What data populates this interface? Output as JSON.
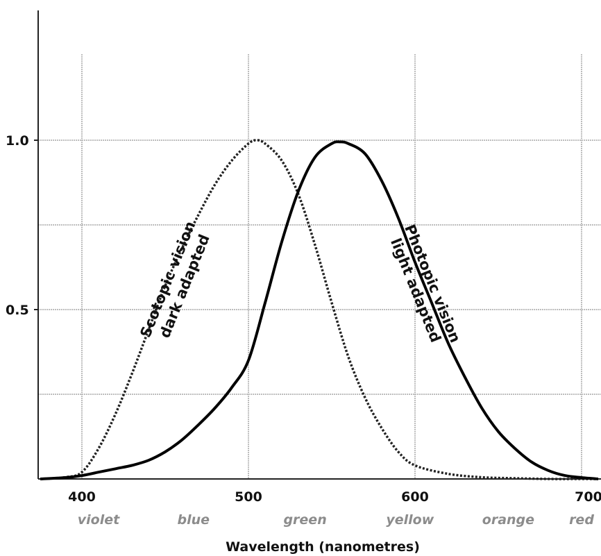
{
  "chart_data": {
    "type": "line",
    "xlabel": "Wavelength (nanometres)",
    "ylabel": "",
    "xlim": [
      375,
      710
    ],
    "ylim": [
      0,
      1.35
    ],
    "grid": true,
    "x_ticks": [
      {
        "value": 400,
        "label": "400"
      },
      {
        "value": 500,
        "label": "500"
      },
      {
        "value": 600,
        "label": "600"
      },
      {
        "value": 700,
        "label": "700"
      }
    ],
    "y_ticks": [
      {
        "value": 1.0,
        "label": "1.0"
      },
      {
        "value": 0.5,
        "label": "0.5"
      }
    ],
    "y_grid_values": [
      0.25,
      0.5,
      0.75,
      1.0
    ],
    "color_bands": [
      {
        "x": 410,
        "label": "violet"
      },
      {
        "x": 467,
        "label": "blue"
      },
      {
        "x": 534,
        "label": "green"
      },
      {
        "x": 597,
        "label": "yellow"
      },
      {
        "x": 656,
        "label": "orange"
      },
      {
        "x": 700,
        "label": "red"
      }
    ],
    "series": [
      {
        "name": "Scotopic vision dark adapted",
        "label_lines": [
          "Scotopic vision",
          "dark adapted"
        ],
        "style": "dotted",
        "color": "#222222",
        "x": [
          375,
          390,
          400,
          410,
          420,
          430,
          440,
          450,
          460,
          470,
          480,
          490,
          500,
          505,
          510,
          520,
          530,
          540,
          550,
          560,
          570,
          580,
          590,
          600,
          620,
          640,
          660,
          680,
          700,
          710
        ],
        "y": [
          0.0,
          0.005,
          0.02,
          0.09,
          0.19,
          0.31,
          0.44,
          0.57,
          0.68,
          0.78,
          0.87,
          0.94,
          0.99,
          1.0,
          0.99,
          0.94,
          0.84,
          0.69,
          0.52,
          0.36,
          0.24,
          0.15,
          0.08,
          0.04,
          0.015,
          0.005,
          0.002,
          0.0,
          0.0,
          0.0
        ]
      },
      {
        "name": "Photopic vision light adapted",
        "label_lines": [
          "Photopic vision",
          "light adapted"
        ],
        "style": "solid",
        "color": "#000000",
        "x": [
          375,
          390,
          400,
          410,
          420,
          430,
          440,
          450,
          460,
          470,
          480,
          490,
          500,
          510,
          520,
          530,
          540,
          550,
          555,
          560,
          570,
          580,
          590,
          600,
          610,
          620,
          630,
          640,
          650,
          660,
          670,
          680,
          690,
          700,
          710
        ],
        "y": [
          0.0,
          0.004,
          0.01,
          0.02,
          0.03,
          0.04,
          0.055,
          0.08,
          0.115,
          0.16,
          0.21,
          0.27,
          0.35,
          0.52,
          0.7,
          0.85,
          0.95,
          0.99,
          0.995,
          0.99,
          0.96,
          0.88,
          0.77,
          0.64,
          0.52,
          0.4,
          0.3,
          0.21,
          0.14,
          0.09,
          0.05,
          0.025,
          0.01,
          0.004,
          0.0
        ]
      }
    ]
  }
}
